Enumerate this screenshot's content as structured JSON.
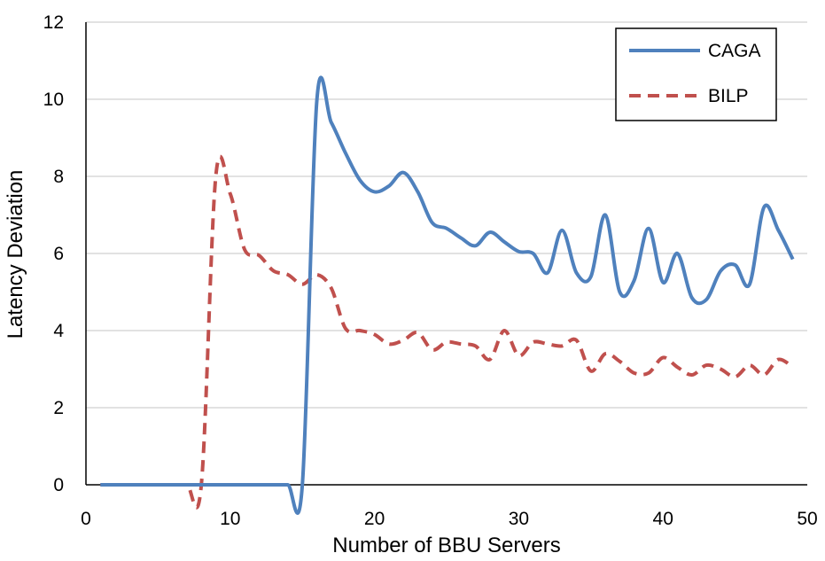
{
  "chart_data": {
    "type": "line",
    "title": "",
    "xlabel": "Number of BBU Servers",
    "ylabel": "Latency Deviation",
    "xlim": [
      0,
      50
    ],
    "ylim": [
      0,
      12
    ],
    "xticks": [
      0,
      10,
      20,
      30,
      40,
      50
    ],
    "yticks": [
      0,
      2,
      4,
      6,
      8,
      10,
      12
    ],
    "grid": "horizontal",
    "legend_position": "top-right",
    "series": [
      {
        "name": "CAGA",
        "color": "#4f81bd",
        "style": "solid",
        "points": [
          [
            1,
            0
          ],
          [
            2,
            0
          ],
          [
            3,
            0
          ],
          [
            4,
            0
          ],
          [
            5,
            0
          ],
          [
            6,
            0
          ],
          [
            7,
            0
          ],
          [
            8,
            0
          ],
          [
            9,
            0
          ],
          [
            10,
            0
          ],
          [
            11,
            0
          ],
          [
            12,
            0
          ],
          [
            13,
            0
          ],
          [
            14,
            0
          ],
          [
            15,
            0
          ],
          [
            16,
            9.95
          ],
          [
            17,
            9.4
          ],
          [
            18,
            8.6
          ],
          [
            19,
            7.9
          ],
          [
            20,
            7.6
          ],
          [
            21,
            7.75
          ],
          [
            22,
            8.1
          ],
          [
            23,
            7.6
          ],
          [
            24,
            6.8
          ],
          [
            25,
            6.65
          ],
          [
            26,
            6.4
          ],
          [
            27,
            6.2
          ],
          [
            28,
            6.55
          ],
          [
            29,
            6.3
          ],
          [
            30,
            6.05
          ],
          [
            31,
            6.0
          ],
          [
            32,
            5.5
          ],
          [
            33,
            6.6
          ],
          [
            34,
            5.5
          ],
          [
            35,
            5.4
          ],
          [
            36,
            7.0
          ],
          [
            37,
            5.0
          ],
          [
            38,
            5.3
          ],
          [
            39,
            6.65
          ],
          [
            40,
            5.25
          ],
          [
            41,
            6.0
          ],
          [
            42,
            4.85
          ],
          [
            43,
            4.8
          ],
          [
            44,
            5.55
          ],
          [
            45,
            5.7
          ],
          [
            46,
            5.2
          ],
          [
            47,
            7.2
          ],
          [
            48,
            6.6
          ],
          [
            49,
            5.85
          ]
        ]
      },
      {
        "name": "BILP",
        "color": "#c0504d",
        "style": "dashed",
        "points": [
          [
            1,
            0
          ],
          [
            2,
            0
          ],
          [
            3,
            0
          ],
          [
            4,
            0
          ],
          [
            5,
            0
          ],
          [
            6,
            0
          ],
          [
            7,
            0
          ],
          [
            8,
            0
          ],
          [
            9,
            8.0
          ],
          [
            10,
            7.55
          ],
          [
            11,
            6.1
          ],
          [
            12,
            5.95
          ],
          [
            13,
            5.55
          ],
          [
            14,
            5.45
          ],
          [
            15,
            5.2
          ],
          [
            16,
            5.45
          ],
          [
            17,
            5.1
          ],
          [
            18,
            4.05
          ],
          [
            19,
            4.0
          ],
          [
            20,
            3.9
          ],
          [
            21,
            3.65
          ],
          [
            22,
            3.75
          ],
          [
            23,
            3.95
          ],
          [
            24,
            3.5
          ],
          [
            25,
            3.7
          ],
          [
            26,
            3.65
          ],
          [
            27,
            3.6
          ],
          [
            28,
            3.25
          ],
          [
            29,
            4.0
          ],
          [
            30,
            3.35
          ],
          [
            31,
            3.7
          ],
          [
            32,
            3.65
          ],
          [
            33,
            3.6
          ],
          [
            34,
            3.75
          ],
          [
            35,
            2.95
          ],
          [
            36,
            3.4
          ],
          [
            37,
            3.2
          ],
          [
            38,
            2.9
          ],
          [
            39,
            2.9
          ],
          [
            40,
            3.3
          ],
          [
            41,
            3.05
          ],
          [
            42,
            2.85
          ],
          [
            43,
            3.1
          ],
          [
            44,
            3.0
          ],
          [
            45,
            2.8
          ],
          [
            46,
            3.1
          ],
          [
            47,
            2.85
          ],
          [
            48,
            3.25
          ],
          [
            49,
            3.05
          ]
        ]
      }
    ]
  }
}
